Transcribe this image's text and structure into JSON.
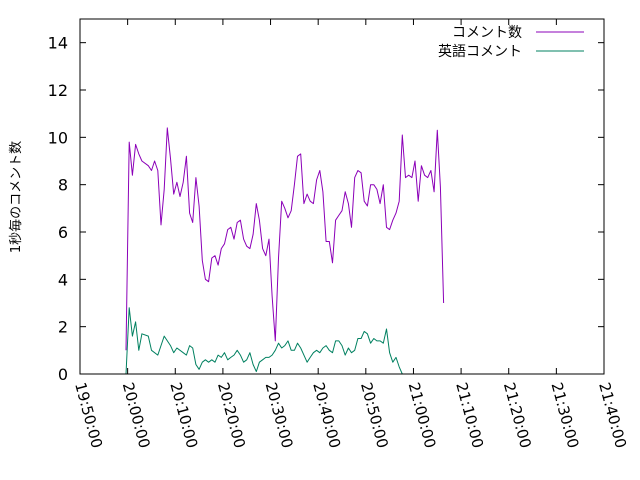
{
  "chart_data": {
    "type": "line",
    "title": "",
    "xlabel": "",
    "ylabel": "1秒毎のコメント数",
    "ylim": [
      0,
      15
    ],
    "yticks": [
      0,
      2,
      4,
      6,
      8,
      10,
      12,
      14
    ],
    "xlim": [
      "19:50:00",
      "21:40:00"
    ],
    "xticks": [
      "19:50:00",
      "20:00:00",
      "20:10:00",
      "20:20:00",
      "20:30:00",
      "20:40:00",
      "20:50:00",
      "21:00:00",
      "21:10:00",
      "21:20:00",
      "21:30:00",
      "21:40:00"
    ],
    "grid": false,
    "legend_position": "top-right",
    "series": [
      {
        "name": "コメント数",
        "color": "#8b00b8",
        "points": [
          [
            "19:59:40",
            1.0
          ],
          [
            "20:00:20",
            9.8
          ],
          [
            "20:01:00",
            8.4
          ],
          [
            "20:01:40",
            9.7
          ],
          [
            "20:02:20",
            9.3
          ],
          [
            "20:03:00",
            9.0
          ],
          [
            "20:04:20",
            8.8
          ],
          [
            "20:05:00",
            8.6
          ],
          [
            "20:05:40",
            9.0
          ],
          [
            "20:06:20",
            8.6
          ],
          [
            "20:07:00",
            6.3
          ],
          [
            "20:07:40",
            7.8
          ],
          [
            "20:08:20",
            10.4
          ],
          [
            "20:09:00",
            9.1
          ],
          [
            "20:09:40",
            7.6
          ],
          [
            "20:10:20",
            8.1
          ],
          [
            "20:11:00",
            7.5
          ],
          [
            "20:11:40",
            8.1
          ],
          [
            "20:12:20",
            9.2
          ],
          [
            "20:13:00",
            6.8
          ],
          [
            "20:13:40",
            6.4
          ],
          [
            "20:14:20",
            8.3
          ],
          [
            "20:15:00",
            7.1
          ],
          [
            "20:15:40",
            4.8
          ],
          [
            "20:16:20",
            4.0
          ],
          [
            "20:17:00",
            3.9
          ],
          [
            "20:17:40",
            4.9
          ],
          [
            "20:18:20",
            5.0
          ],
          [
            "20:19:00",
            4.6
          ],
          [
            "20:19:40",
            5.3
          ],
          [
            "20:20:20",
            5.5
          ],
          [
            "20:21:00",
            6.1
          ],
          [
            "20:21:40",
            6.2
          ],
          [
            "20:22:20",
            5.7
          ],
          [
            "20:23:00",
            6.4
          ],
          [
            "20:23:40",
            6.5
          ],
          [
            "20:24:20",
            5.7
          ],
          [
            "20:25:00",
            5.4
          ],
          [
            "20:25:40",
            5.3
          ],
          [
            "20:26:20",
            5.9
          ],
          [
            "20:27:00",
            7.2
          ],
          [
            "20:27:40",
            6.5
          ],
          [
            "20:28:20",
            5.3
          ],
          [
            "20:29:00",
            5.0
          ],
          [
            "20:29:40",
            5.7
          ],
          [
            "20:30:20",
            3.3
          ],
          [
            "20:31:00",
            1.4
          ],
          [
            "20:31:40",
            4.9
          ],
          [
            "20:32:20",
            7.3
          ],
          [
            "20:33:00",
            7.0
          ],
          [
            "20:33:40",
            6.6
          ],
          [
            "20:34:20",
            6.9
          ],
          [
            "20:35:00",
            8.0
          ],
          [
            "20:35:40",
            9.2
          ],
          [
            "20:36:20",
            9.3
          ],
          [
            "20:37:00",
            7.2
          ],
          [
            "20:37:40",
            7.6
          ],
          [
            "20:38:20",
            7.3
          ],
          [
            "20:39:00",
            7.2
          ],
          [
            "20:39:40",
            8.2
          ],
          [
            "20:40:20",
            8.6
          ],
          [
            "20:41:00",
            7.7
          ],
          [
            "20:41:40",
            5.6
          ],
          [
            "20:42:20",
            5.6
          ],
          [
            "20:43:00",
            4.7
          ],
          [
            "20:43:40",
            6.5
          ],
          [
            "20:44:20",
            6.7
          ],
          [
            "20:45:00",
            6.9
          ],
          [
            "20:45:40",
            7.7
          ],
          [
            "20:46:20",
            7.2
          ],
          [
            "20:47:00",
            6.2
          ],
          [
            "20:47:40",
            8.3
          ],
          [
            "20:48:20",
            8.6
          ],
          [
            "20:49:00",
            8.5
          ],
          [
            "20:49:40",
            7.3
          ],
          [
            "20:50:20",
            7.1
          ],
          [
            "20:51:00",
            8.0
          ],
          [
            "20:51:40",
            8.0
          ],
          [
            "20:52:20",
            7.8
          ],
          [
            "20:53:00",
            7.2
          ],
          [
            "20:53:40",
            8.0
          ],
          [
            "20:54:20",
            6.2
          ],
          [
            "20:55:00",
            6.1
          ],
          [
            "20:55:40",
            6.5
          ],
          [
            "20:56:20",
            6.8
          ],
          [
            "20:57:00",
            7.3
          ],
          [
            "20:57:40",
            10.1
          ],
          [
            "20:58:20",
            8.3
          ],
          [
            "20:59:00",
            8.4
          ],
          [
            "20:59:40",
            8.3
          ],
          [
            "21:00:20",
            9.0
          ],
          [
            "21:01:00",
            7.3
          ],
          [
            "21:01:40",
            8.8
          ],
          [
            "21:02:20",
            8.4
          ],
          [
            "21:03:00",
            8.3
          ],
          [
            "21:03:40",
            8.6
          ],
          [
            "21:04:20",
            7.7
          ],
          [
            "21:05:00",
            10.3
          ],
          [
            "21:05:40",
            7.9
          ],
          [
            "21:06:20",
            3.0
          ]
        ]
      },
      {
        "name": "英語コメント",
        "color": "#008060",
        "points": [
          [
            "19:59:40",
            0.0
          ],
          [
            "20:00:20",
            2.8
          ],
          [
            "20:01:00",
            1.6
          ],
          [
            "20:01:40",
            2.2
          ],
          [
            "20:02:20",
            1.0
          ],
          [
            "20:03:00",
            1.7
          ],
          [
            "20:04:20",
            1.6
          ],
          [
            "20:05:00",
            1.0
          ],
          [
            "20:06:20",
            0.8
          ],
          [
            "20:07:40",
            1.6
          ],
          [
            "20:09:00",
            1.2
          ],
          [
            "20:09:40",
            0.9
          ],
          [
            "20:10:20",
            1.1
          ],
          [
            "20:11:40",
            0.9
          ],
          [
            "20:12:20",
            0.8
          ],
          [
            "20:13:00",
            1.2
          ],
          [
            "20:13:40",
            1.1
          ],
          [
            "20:14:20",
            0.4
          ],
          [
            "20:15:00",
            0.2
          ],
          [
            "20:15:40",
            0.5
          ],
          [
            "20:16:20",
            0.6
          ],
          [
            "20:17:00",
            0.5
          ],
          [
            "20:17:40",
            0.6
          ],
          [
            "20:18:20",
            0.5
          ],
          [
            "20:19:00",
            0.8
          ],
          [
            "20:19:40",
            0.7
          ],
          [
            "20:20:20",
            0.9
          ],
          [
            "20:21:00",
            0.6
          ],
          [
            "20:21:40",
            0.7
          ],
          [
            "20:22:20",
            0.8
          ],
          [
            "20:23:00",
            1.0
          ],
          [
            "20:23:40",
            0.8
          ],
          [
            "20:24:20",
            0.5
          ],
          [
            "20:25:00",
            0.6
          ],
          [
            "20:25:40",
            0.9
          ],
          [
            "20:26:20",
            0.4
          ],
          [
            "20:27:00",
            0.1
          ],
          [
            "20:27:40",
            0.5
          ],
          [
            "20:28:20",
            0.6
          ],
          [
            "20:29:00",
            0.7
          ],
          [
            "20:29:40",
            0.7
          ],
          [
            "20:30:20",
            0.8
          ],
          [
            "20:31:00",
            1.0
          ],
          [
            "20:31:40",
            1.3
          ],
          [
            "20:32:20",
            1.1
          ],
          [
            "20:33:00",
            1.2
          ],
          [
            "20:33:40",
            1.4
          ],
          [
            "20:34:20",
            1.0
          ],
          [
            "20:35:00",
            1.0
          ],
          [
            "20:35:40",
            1.3
          ],
          [
            "20:36:20",
            1.1
          ],
          [
            "20:37:00",
            0.8
          ],
          [
            "20:37:40",
            0.5
          ],
          [
            "20:38:20",
            0.7
          ],
          [
            "20:39:00",
            0.9
          ],
          [
            "20:39:40",
            1.0
          ],
          [
            "20:40:20",
            0.9
          ],
          [
            "20:41:00",
            1.1
          ],
          [
            "20:41:40",
            1.2
          ],
          [
            "20:42:20",
            1.0
          ],
          [
            "20:43:00",
            0.9
          ],
          [
            "20:43:40",
            1.4
          ],
          [
            "20:44:20",
            1.4
          ],
          [
            "20:45:00",
            1.2
          ],
          [
            "20:45:40",
            0.8
          ],
          [
            "20:46:20",
            1.1
          ],
          [
            "20:47:00",
            0.9
          ],
          [
            "20:47:40",
            1.0
          ],
          [
            "20:48:20",
            1.5
          ],
          [
            "20:49:00",
            1.5
          ],
          [
            "20:49:40",
            1.8
          ],
          [
            "20:50:20",
            1.7
          ],
          [
            "20:51:00",
            1.3
          ],
          [
            "20:51:40",
            1.5
          ],
          [
            "20:52:20",
            1.4
          ],
          [
            "20:53:00",
            1.4
          ],
          [
            "20:53:40",
            1.3
          ],
          [
            "20:54:20",
            1.9
          ],
          [
            "20:55:00",
            0.9
          ],
          [
            "20:55:40",
            0.5
          ],
          [
            "20:56:20",
            0.7
          ],
          [
            "20:57:00",
            0.3
          ],
          [
            "20:57:40",
            0.0
          ]
        ]
      }
    ]
  }
}
